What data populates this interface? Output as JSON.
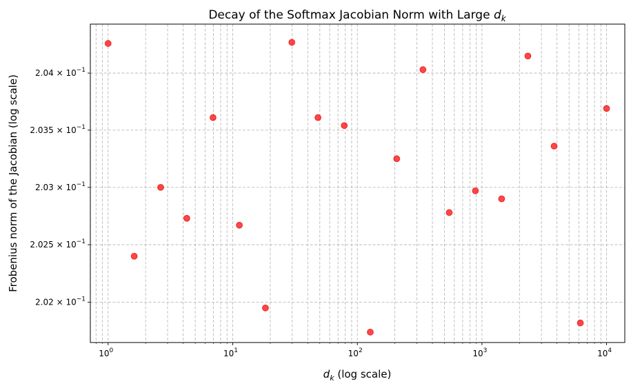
{
  "chart_data": {
    "type": "scatter",
    "title": "Decay of the Softmax Jacobian Norm with Large",
    "title_math": "d",
    "title_math_sub": "k",
    "xlabel_math": "d",
    "xlabel_math_sub": "k",
    "xlabel": "(log scale)",
    "ylabel": "Frobenius norm of the Jacobian (log scale)",
    "xscale": "log",
    "yscale": "log",
    "xlim": [
      0.72,
      14000
    ],
    "ylim": [
      0.20165,
      0.20443
    ],
    "grid": true,
    "marker_color": "#ff0000",
    "x_ticks": [
      {
        "value": 1,
        "base": "10",
        "exp": "0"
      },
      {
        "value": 10,
        "base": "10",
        "exp": "1"
      },
      {
        "value": 100,
        "base": "10",
        "exp": "2"
      },
      {
        "value": 1000,
        "base": "10",
        "exp": "3"
      },
      {
        "value": 10000,
        "base": "10",
        "exp": "4"
      }
    ],
    "y_ticks": [
      {
        "value": 0.202,
        "mantissa": "2.02",
        "times": "×",
        "base": "10",
        "exp": "−1"
      },
      {
        "value": 0.2025,
        "mantissa": "2.025",
        "times": "×",
        "base": "10",
        "exp": "−1"
      },
      {
        "value": 0.203,
        "mantissa": "2.03",
        "times": "×",
        "base": "10",
        "exp": "−1"
      },
      {
        "value": 0.2035,
        "mantissa": "2.035",
        "times": "×",
        "base": "10",
        "exp": "−1"
      },
      {
        "value": 0.204,
        "mantissa": "2.04",
        "times": "×",
        "base": "10",
        "exp": "−1"
      }
    ],
    "x": [
      1.0,
      1.62,
      2.64,
      4.28,
      6.95,
      11.3,
      18.3,
      29.8,
      48.3,
      78.5,
      127,
      207,
      336,
      546,
      886,
      1438,
      2336,
      3793,
      6158,
      10000
    ],
    "y": [
      0.20426,
      0.2024,
      0.203,
      0.20273,
      0.20361,
      0.20267,
      0.20195,
      0.20427,
      0.20361,
      0.20354,
      0.20174,
      0.20325,
      0.20403,
      0.20278,
      0.20297,
      0.2029,
      0.20415,
      0.20336,
      0.20182,
      0.20369
    ]
  }
}
